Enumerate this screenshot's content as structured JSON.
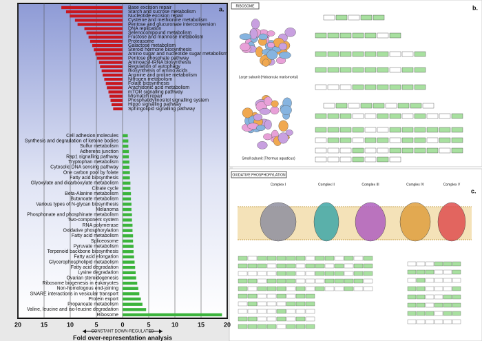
{
  "chart_data": {
    "type": "diverging-bar",
    "panel_label": "a.",
    "xlabel": "Fold over-representation analysis",
    "direction_label": "CONSTANT DOWN-REGULATED",
    "negative_color": "#c8161e",
    "positive_color": "#3cb43c",
    "grid": true,
    "xlim": [
      -20,
      20
    ],
    "xticks": [
      {
        "value": -20,
        "label": "20"
      },
      {
        "value": -15,
        "label": "15"
      },
      {
        "value": -10,
        "label": "10"
      },
      {
        "value": -5,
        "label": "5"
      },
      0,
      5,
      10,
      15,
      20
    ],
    "categories": [
      "Base excision repair",
      "Starch and sucrose metabolism",
      "Nucleotide excision repair",
      "Cysteine and methionine metabolism",
      "Pentose and glucuronate interconversion",
      "DNA replication",
      "Selenocompound metabolism",
      "Fructose and mannose metabolism",
      "Proteasome",
      "Galactose metabolism",
      "Steroid hormone biosynthesis",
      "Amino sugar and nucleotide sugar metabolism",
      "Pentose phosphate pathway",
      "Aminoacyl-tRNA biosynthesis",
      "Regulation of autophagy",
      "Biosynthesis of amino acids",
      "Arginine and proline metabolism",
      "Nitrogen metabolism",
      "Folate biosynthesis",
      "Arachidonic acid metabolism",
      "mTOR signalling pathway",
      "Mismatch repair",
      "Phosphatidylinositol signalling system",
      "Hippo signalling pathway",
      "Sphingolipid signalling pathway",
      "Cell adhesion molecules",
      "Synthesis and degradation of ketone bodies",
      "Sulfur metabolism",
      "Adherens junction",
      "Rap1 signalling pathway",
      "Tryptophan metabolism",
      "Cytosolic DNA sensing pathway",
      "One carbon pool by folate",
      "Fatty acid biosynthesis",
      "Glyoxylate and dicarboxylate metabolism",
      "Citrate cycle",
      "Beta-Alanine metabolism",
      "Butanoate metabolism",
      "Various types of N-glycan biosynthesis",
      "Melanoma",
      "Phosphonate and phosphinate metabolism",
      "Two-component system",
      "RNA polymerase",
      "Oxidative phosphorylation",
      "Fatty acid metabolism",
      "Spliceosome",
      "Pyruvate metabolism",
      "Terpenoid backbone biosynthesis",
      "Fatty acid elongation",
      "Glycerophospholipid metabolism",
      "Fatty acid degradation",
      "Lysine degradation",
      "Ovarian steroidogenesis",
      "Ribosome biogenesis in eukaryotes",
      "Non-homologous end-joining",
      "SNARE interactions in vesicular transport",
      "Protein export",
      "Propanoate metabolism",
      "Valine, leucine and iso-leucine degradation",
      "Ribosome"
    ],
    "values": [
      -11.7,
      -10.8,
      -10.1,
      -9.1,
      -8.6,
      -7.3,
      -6.9,
      -6.5,
      -6.2,
      -5.8,
      -5.5,
      -5.2,
      -4.9,
      -4.5,
      -4.3,
      -4.0,
      -3.8,
      -3.5,
      -3.2,
      -3.0,
      -2.7,
      -2.5,
      -2.3,
      -2.1,
      -1.8,
      1.0,
      1.1,
      1.1,
      1.2,
      1.2,
      1.3,
      1.3,
      1.4,
      1.4,
      1.5,
      1.5,
      1.6,
      1.6,
      1.7,
      1.7,
      1.8,
      1.8,
      1.9,
      1.9,
      2.0,
      2.0,
      2.1,
      2.1,
      2.2,
      2.3,
      2.4,
      2.5,
      2.6,
      2.8,
      3.0,
      3.2,
      3.5,
      3.8,
      4.5,
      19
    ]
  },
  "figure": {
    "ribosome": {
      "panel_label": "b.",
      "title": "RIBOSOME",
      "large_subunit": "Large subunit (Haloarcula marismortui)",
      "small_subunit": "Small subunit (Thermus aquaticus)"
    },
    "oxphos": {
      "panel_label": "c.",
      "title": "OXIDATIVE PHOSPHORYLATION",
      "complexes": [
        "Complex I",
        "Complex II",
        "Complex III",
        "Complex IV",
        "Complex V"
      ]
    }
  }
}
